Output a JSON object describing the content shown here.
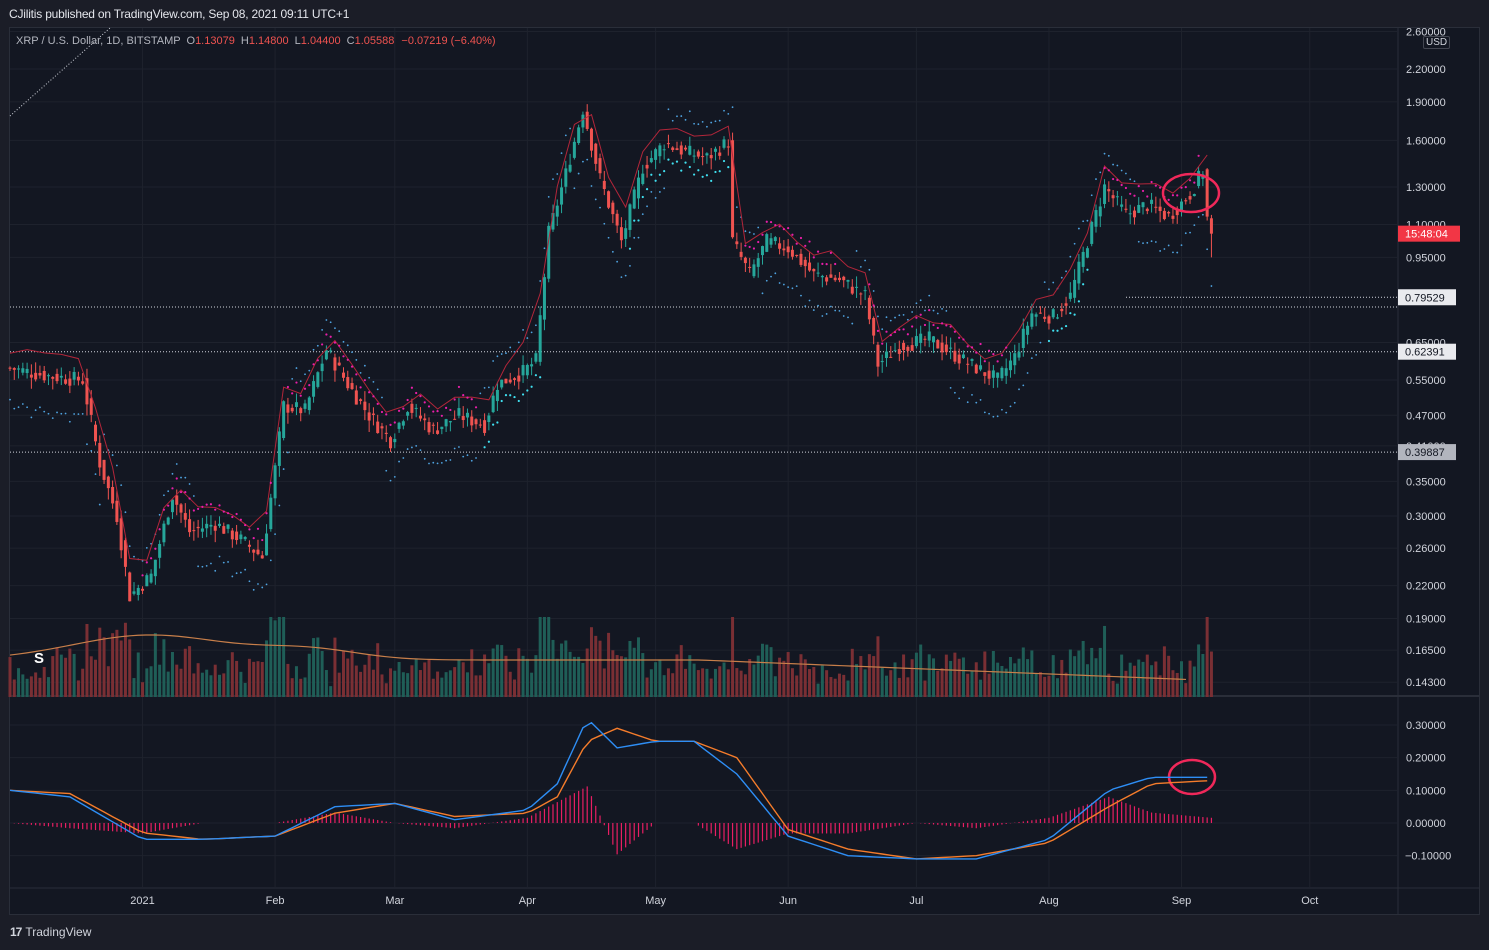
{
  "header": {
    "publisher_text": "CJilitis published on TradingView.com, Sep 08, 2021 09:11 UTC+1"
  },
  "symbol": {
    "name": "XRP / U.S. Dollar, 1D, BITSTAMP",
    "o_label": "O",
    "o_value": "1.13079",
    "h_label": "H",
    "h_value": "1.14800",
    "l_label": "L",
    "l_value": "1.04400",
    "c_label": "C",
    "c_value": "1.05588",
    "change": "−0.07219 (−6.40%)"
  },
  "price_axis": {
    "currency": "USD",
    "ticks": [
      "2.60000",
      "2.20000",
      "1.90000",
      "1.60000",
      "1.30000",
      "1.10000",
      "0.95000",
      "0.65000",
      "0.55000",
      "0.47000",
      "0.41000",
      "0.35000",
      "0.30000",
      "0.26000",
      "0.22000",
      "0.19000",
      "0.16500",
      "0.14300"
    ],
    "countdown_label": "15:48:04",
    "level_labels": [
      "0.79529",
      "0.62391",
      "0.39887"
    ]
  },
  "macd_axis": {
    "ticks": [
      "0.30000",
      "0.20000",
      "0.10000",
      "0.00000",
      "−0.10000"
    ]
  },
  "time_axis": {
    "labels": [
      "2021",
      "Feb",
      "Mar",
      "Apr",
      "May",
      "Jun",
      "Jul",
      "Aug",
      "Sep",
      "Oct"
    ]
  },
  "annotations": {
    "session_marker": "S"
  },
  "footer": {
    "brand": "TradingView"
  },
  "colors": {
    "background": "#131722",
    "up_candle": "#26a69a",
    "down_candle": "#ef5350",
    "psar": "#4fa3e0",
    "supertrend_bear": "#e91eaa",
    "highlight_circle": "#f0285a",
    "macd_line": "#2e8ef5",
    "signal_line": "#f57c2b",
    "histogram": "#e91e63"
  },
  "chart_data": [
    {
      "type": "candlestick",
      "title": "XRP / U.S. Dollar, 1D, BITSTAMP",
      "scale": "log",
      "ylim": [
        0.135,
        2.7
      ],
      "xlim": [
        "2020-12-01",
        "2021-10-20"
      ],
      "x_ticks": [
        "2021",
        "Feb",
        "Mar",
        "Apr",
        "May",
        "Jun",
        "Jul",
        "Aug",
        "Sep",
        "Oct"
      ],
      "y_ticks": [
        2.6,
        2.2,
        1.9,
        1.6,
        1.3,
        1.1,
        0.95,
        0.65,
        0.55,
        0.47,
        0.41,
        0.35,
        0.3,
        0.26,
        0.22,
        0.19,
        0.165,
        0.143
      ],
      "horizontal_levels": [
        0.79529,
        0.62391,
        0.39887
      ],
      "last_close": 1.05588,
      "price_path": [
        {
          "date": "2020-12-01",
          "close": 0.58
        },
        {
          "date": "2020-12-10",
          "close": 0.56
        },
        {
          "date": "2020-12-18",
          "close": 0.55
        },
        {
          "date": "2020-12-22",
          "close": 0.38
        },
        {
          "date": "2020-12-26",
          "close": 0.3
        },
        {
          "date": "2020-12-29",
          "close": 0.21
        },
        {
          "date": "2021-01-03",
          "close": 0.23
        },
        {
          "date": "2021-01-08",
          "close": 0.33
        },
        {
          "date": "2021-01-12",
          "close": 0.28
        },
        {
          "date": "2021-01-18",
          "close": 0.29
        },
        {
          "date": "2021-01-24",
          "close": 0.27
        },
        {
          "date": "2021-01-29",
          "close": 0.25
        },
        {
          "date": "2021-02-01",
          "close": 0.37
        },
        {
          "date": "2021-02-03",
          "close": 0.49
        },
        {
          "date": "2021-02-08",
          "close": 0.48
        },
        {
          "date": "2021-02-13",
          "close": 0.63
        },
        {
          "date": "2021-02-18",
          "close": 0.54
        },
        {
          "date": "2021-02-23",
          "close": 0.47
        },
        {
          "date": "2021-02-28",
          "close": 0.42
        },
        {
          "date": "2021-03-04",
          "close": 0.49
        },
        {
          "date": "2021-03-10",
          "close": 0.44
        },
        {
          "date": "2021-03-16",
          "close": 0.47
        },
        {
          "date": "2021-03-22",
          "close": 0.45
        },
        {
          "date": "2021-03-25",
          "close": 0.54
        },
        {
          "date": "2021-03-31",
          "close": 0.57
        },
        {
          "date": "2021-04-03",
          "close": 0.6
        },
        {
          "date": "2021-04-06",
          "close": 1.06
        },
        {
          "date": "2021-04-10",
          "close": 1.38
        },
        {
          "date": "2021-04-14",
          "close": 1.84
        },
        {
          "date": "2021-04-18",
          "close": 1.35
        },
        {
          "date": "2021-04-23",
          "close": 1.02
        },
        {
          "date": "2021-04-28",
          "close": 1.42
        },
        {
          "date": "2021-05-03",
          "close": 1.58
        },
        {
          "date": "2021-05-08",
          "close": 1.52
        },
        {
          "date": "2021-05-13",
          "close": 1.48
        },
        {
          "date": "2021-05-18",
          "close": 1.59
        },
        {
          "date": "2021-05-19",
          "close": 1.02
        },
        {
          "date": "2021-05-23",
          "close": 0.88
        },
        {
          "date": "2021-05-27",
          "close": 1.02
        },
        {
          "date": "2021-06-01",
          "close": 0.99
        },
        {
          "date": "2021-06-07",
          "close": 0.88
        },
        {
          "date": "2021-06-13",
          "close": 0.86
        },
        {
          "date": "2021-06-19",
          "close": 0.8
        },
        {
          "date": "2021-06-22",
          "close": 0.59
        },
        {
          "date": "2021-06-27",
          "close": 0.64
        },
        {
          "date": "2021-07-04",
          "close": 0.66
        },
        {
          "date": "2021-07-12",
          "close": 0.6
        },
        {
          "date": "2021-07-20",
          "close": 0.55
        },
        {
          "date": "2021-07-24",
          "close": 0.61
        },
        {
          "date": "2021-07-28",
          "close": 0.74
        },
        {
          "date": "2021-08-02",
          "close": 0.73
        },
        {
          "date": "2021-08-06",
          "close": 0.8
        },
        {
          "date": "2021-08-10",
          "close": 1.02
        },
        {
          "date": "2021-08-14",
          "close": 1.3
        },
        {
          "date": "2021-08-19",
          "close": 1.15
        },
        {
          "date": "2021-08-24",
          "close": 1.2
        },
        {
          "date": "2021-08-29",
          "close": 1.14
        },
        {
          "date": "2021-09-03",
          "close": 1.26
        },
        {
          "date": "2021-09-06",
          "close": 1.4
        },
        {
          "date": "2021-09-07",
          "close": 1.13079
        },
        {
          "date": "2021-09-08",
          "close": 1.05588
        }
      ]
    },
    {
      "type": "line",
      "title": "MACD",
      "ylim": [
        -0.14,
        0.35
      ],
      "y_ticks": [
        0.3,
        0.2,
        0.1,
        0.0,
        -0.1
      ],
      "series": [
        {
          "values_role": "macd",
          "x": [
            "2020-12-01",
            "2020-12-15",
            "2021-01-01",
            "2021-01-15",
            "2021-02-01",
            "2021-02-15",
            "2021-03-01",
            "2021-03-15",
            "2021-04-01",
            "2021-04-08",
            "2021-04-15",
            "2021-04-22",
            "2021-05-01",
            "2021-05-10",
            "2021-05-20",
            "2021-06-01",
            "2021-06-15",
            "2021-07-01",
            "2021-07-15",
            "2021-08-01",
            "2021-08-15",
            "2021-08-25",
            "2021-09-08"
          ],
          "values": [
            0.1,
            0.08,
            -0.05,
            -0.05,
            -0.04,
            0.05,
            0.06,
            0.01,
            0.04,
            0.12,
            0.32,
            0.23,
            0.25,
            0.25,
            0.15,
            -0.04,
            -0.1,
            -0.11,
            -0.11,
            -0.05,
            0.1,
            0.14,
            0.14
          ]
        },
        {
          "values_role": "signal",
          "x": [
            "2020-12-01",
            "2020-12-15",
            "2021-01-01",
            "2021-01-15",
            "2021-02-01",
            "2021-02-15",
            "2021-03-01",
            "2021-03-15",
            "2021-04-01",
            "2021-04-08",
            "2021-04-15",
            "2021-04-22",
            "2021-05-01",
            "2021-05-10",
            "2021-05-20",
            "2021-06-01",
            "2021-06-15",
            "2021-07-01",
            "2021-07-15",
            "2021-08-01",
            "2021-08-15",
            "2021-08-25",
            "2021-09-08"
          ],
          "values": [
            0.1,
            0.09,
            -0.03,
            -0.05,
            -0.04,
            0.03,
            0.06,
            0.02,
            0.03,
            0.08,
            0.25,
            0.29,
            0.25,
            0.25,
            0.2,
            -0.02,
            -0.08,
            -0.11,
            -0.1,
            -0.06,
            0.05,
            0.12,
            0.13
          ]
        }
      ]
    }
  ]
}
